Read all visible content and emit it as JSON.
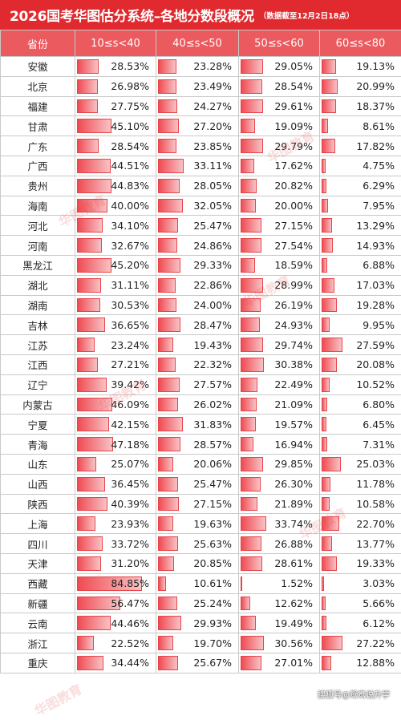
{
  "title": "2026国考华图估分系统–各地分数段概况",
  "note": "（数据截至12月2日18点）",
  "headers": [
    "省份",
    "10≤s<40",
    "40≤s<50",
    "50≤s<60",
    "60≤s<80"
  ],
  "rows": [
    {
      "province": "安徽",
      "values": [
        "28.53%",
        "23.28%",
        "29.05%",
        "19.13%"
      ],
      "fractions": [
        0.2853,
        0.2328,
        0.2905,
        0.1913
      ]
    },
    {
      "province": "北京",
      "values": [
        "26.98%",
        "23.49%",
        "28.54%",
        "20.99%"
      ],
      "fractions": [
        0.2698,
        0.2349,
        0.2854,
        0.2099
      ]
    },
    {
      "province": "福建",
      "values": [
        "27.75%",
        "24.27%",
        "29.61%",
        "18.37%"
      ],
      "fractions": [
        0.2775,
        0.2427,
        0.2961,
        0.1837
      ]
    },
    {
      "province": "甘肃",
      "values": [
        "45.10%",
        "27.20%",
        "19.09%",
        "8.61%"
      ],
      "fractions": [
        0.451,
        0.272,
        0.1909,
        0.0861
      ]
    },
    {
      "province": "广东",
      "values": [
        "28.54%",
        "23.85%",
        "29.79%",
        "17.82%"
      ],
      "fractions": [
        0.2854,
        0.2385,
        0.2979,
        0.1782
      ]
    },
    {
      "province": "广西",
      "values": [
        "44.51%",
        "33.11%",
        "17.62%",
        "4.75%"
      ],
      "fractions": [
        0.4451,
        0.3311,
        0.1762,
        0.0475
      ]
    },
    {
      "province": "贵州",
      "values": [
        "44.83%",
        "28.05%",
        "20.82%",
        "6.29%"
      ],
      "fractions": [
        0.4483,
        0.2805,
        0.2082,
        0.0629
      ]
    },
    {
      "province": "海南",
      "values": [
        "40.00%",
        "32.05%",
        "20.00%",
        "7.95%"
      ],
      "fractions": [
        0.4,
        0.3205,
        0.2,
        0.0795
      ]
    },
    {
      "province": "河北",
      "values": [
        "34.10%",
        "25.47%",
        "27.15%",
        "13.29%"
      ],
      "fractions": [
        0.341,
        0.2547,
        0.2715,
        0.1329
      ]
    },
    {
      "province": "河南",
      "values": [
        "32.67%",
        "24.86%",
        "27.54%",
        "14.93%"
      ],
      "fractions": [
        0.3267,
        0.2486,
        0.2754,
        0.1493
      ]
    },
    {
      "province": "黑龙江",
      "values": [
        "45.20%",
        "29.33%",
        "18.59%",
        "6.88%"
      ],
      "fractions": [
        0.452,
        0.2933,
        0.1859,
        0.0688
      ]
    },
    {
      "province": "湖北",
      "values": [
        "31.11%",
        "22.86%",
        "28.99%",
        "17.03%"
      ],
      "fractions": [
        0.3111,
        0.2286,
        0.2899,
        0.1703
      ]
    },
    {
      "province": "湖南",
      "values": [
        "30.53%",
        "24.00%",
        "26.19%",
        "19.28%"
      ],
      "fractions": [
        0.3053,
        0.24,
        0.2619,
        0.1928
      ]
    },
    {
      "province": "吉林",
      "values": [
        "36.65%",
        "28.47%",
        "24.93%",
        "9.95%"
      ],
      "fractions": [
        0.3665,
        0.2847,
        0.2493,
        0.0995
      ]
    },
    {
      "province": "江苏",
      "values": [
        "23.24%",
        "19.43%",
        "29.74%",
        "27.59%"
      ],
      "fractions": [
        0.2324,
        0.1943,
        0.2974,
        0.2759
      ]
    },
    {
      "province": "江西",
      "values": [
        "27.21%",
        "22.32%",
        "30.38%",
        "20.08%"
      ],
      "fractions": [
        0.2721,
        0.2232,
        0.3038,
        0.2008
      ]
    },
    {
      "province": "辽宁",
      "values": [
        "39.42%",
        "27.57%",
        "22.49%",
        "10.52%"
      ],
      "fractions": [
        0.3942,
        0.2757,
        0.2249,
        0.1052
      ]
    },
    {
      "province": "内蒙古",
      "values": [
        "46.09%",
        "26.02%",
        "21.09%",
        "6.80%"
      ],
      "fractions": [
        0.4609,
        0.2602,
        0.2109,
        0.068
      ]
    },
    {
      "province": "宁夏",
      "values": [
        "42.15%",
        "31.83%",
        "19.57%",
        "6.45%"
      ],
      "fractions": [
        0.4215,
        0.3183,
        0.1957,
        0.0645
      ]
    },
    {
      "province": "青海",
      "values": [
        "47.18%",
        "28.57%",
        "16.94%",
        "7.31%"
      ],
      "fractions": [
        0.4718,
        0.2857,
        0.1694,
        0.0731
      ]
    },
    {
      "province": "山东",
      "values": [
        "25.07%",
        "20.06%",
        "29.85%",
        "25.03%"
      ],
      "fractions": [
        0.2507,
        0.2006,
        0.2985,
        0.2503
      ]
    },
    {
      "province": "山西",
      "values": [
        "36.45%",
        "25.47%",
        "26.30%",
        "11.78%"
      ],
      "fractions": [
        0.3645,
        0.2547,
        0.263,
        0.1178
      ]
    },
    {
      "province": "陕西",
      "values": [
        "40.39%",
        "27.15%",
        "21.89%",
        "10.58%"
      ],
      "fractions": [
        0.4039,
        0.2715,
        0.2189,
        0.1058
      ]
    },
    {
      "province": "上海",
      "values": [
        "23.93%",
        "19.63%",
        "33.74%",
        "22.70%"
      ],
      "fractions": [
        0.2393,
        0.1963,
        0.3374,
        0.227
      ]
    },
    {
      "province": "四川",
      "values": [
        "33.72%",
        "25.63%",
        "26.88%",
        "13.77%"
      ],
      "fractions": [
        0.3372,
        0.2563,
        0.2688,
        0.1377
      ]
    },
    {
      "province": "天津",
      "values": [
        "31.20%",
        "20.85%",
        "28.61%",
        "19.33%"
      ],
      "fractions": [
        0.312,
        0.2085,
        0.2861,
        0.1933
      ]
    },
    {
      "province": "西藏",
      "values": [
        "84.85%",
        "10.61%",
        "1.52%",
        "3.03%"
      ],
      "fractions": [
        0.8485,
        0.1061,
        0.0152,
        0.0303
      ]
    },
    {
      "province": "新疆",
      "values": [
        "56.47%",
        "25.24%",
        "12.62%",
        "5.66%"
      ],
      "fractions": [
        0.5647,
        0.2524,
        0.1262,
        0.0566
      ]
    },
    {
      "province": "云南",
      "values": [
        "44.46%",
        "29.93%",
        "19.49%",
        "6.12%"
      ],
      "fractions": [
        0.4446,
        0.2993,
        0.1949,
        0.0612
      ]
    },
    {
      "province": "浙江",
      "values": [
        "22.52%",
        "19.70%",
        "30.56%",
        "27.22%"
      ],
      "fractions": [
        0.2252,
        0.197,
        0.3056,
        0.2722
      ]
    },
    {
      "province": "重庆",
      "values": [
        "34.44%",
        "25.67%",
        "27.01%",
        "12.88%"
      ],
      "fractions": [
        0.3444,
        0.2567,
        0.2701,
        0.1288
      ]
    }
  ],
  "watermark": "华图教育",
  "source": "搜狐号@鸳鸯说升学",
  "colors": {
    "header_bg": "#e02a2f",
    "th_bg": "#ea5a5e",
    "bar": "#ef4b52"
  }
}
